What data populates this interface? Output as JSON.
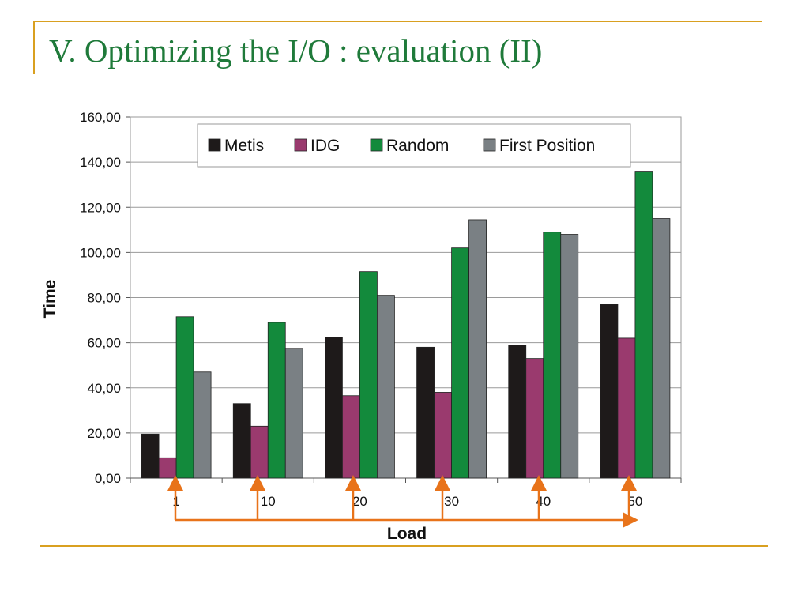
{
  "slide": {
    "title": "V. Optimizing the I/O : evaluation (II)"
  },
  "colors": {
    "accent_rule": "#d9a020",
    "title": "#1f7a3a",
    "arrow": "#e8731a"
  },
  "chart_data": {
    "type": "bar",
    "title": "",
    "xlabel": "Load",
    "ylabel": "Time",
    "categories": [
      "1",
      "10",
      "20",
      "30",
      "40",
      "50"
    ],
    "ylim": [
      0,
      160
    ],
    "yticks": [
      "0,00",
      "20,00",
      "40,00",
      "60,00",
      "80,00",
      "100,00",
      "120,00",
      "140,00",
      "160,00"
    ],
    "grid": true,
    "legend_position": "top",
    "series": [
      {
        "name": "Metis",
        "color": "#1e1a1a",
        "values": [
          19.5,
          33,
          62.5,
          58,
          59,
          77
        ]
      },
      {
        "name": "IDG",
        "color": "#9a3a6e",
        "values": [
          9,
          23,
          36.5,
          38,
          53,
          62
        ]
      },
      {
        "name": "Random",
        "color": "#138a3c",
        "values": [
          71.5,
          69,
          91.5,
          102,
          109,
          136
        ]
      },
      {
        "name": "First Position",
        "color": "#7a8084",
        "values": [
          47,
          57.5,
          81,
          114.5,
          108,
          115
        ]
      }
    ]
  }
}
